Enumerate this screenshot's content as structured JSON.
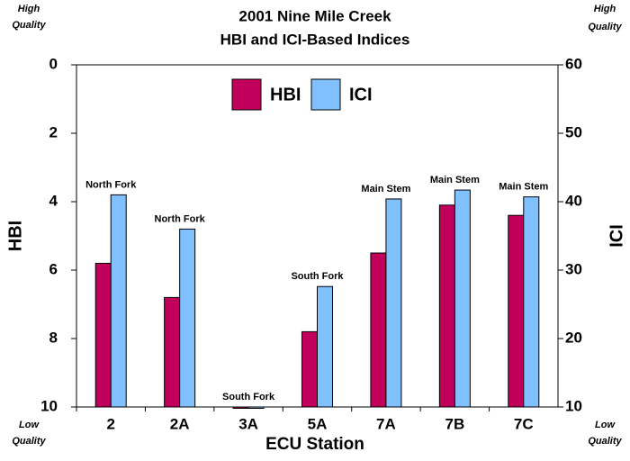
{
  "chart_data": {
    "type": "bar",
    "title": [
      "2001 Nine Mile Creek",
      "HBI and ICI-Based Indices"
    ],
    "xlabel": "ECU Station",
    "ylabel": "HBI",
    "y2label": "ICI",
    "corner_top": [
      "High",
      "Quality"
    ],
    "corner_bottom": [
      "Low",
      "Quality"
    ],
    "categories": [
      "2",
      "2A",
      "3A",
      "5A",
      "7A",
      "7B",
      "7C"
    ],
    "annotations": [
      "North Fork",
      "North Fork",
      "South Fork",
      "South Fork",
      "Main Stem",
      "Main Stem",
      "Main Stem"
    ],
    "series": [
      {
        "name": "HBI",
        "color": "#c0005a",
        "values": [
          5.8,
          6.8,
          10,
          7.8,
          5.5,
          4.1,
          4.4
        ]
      },
      {
        "name": "ICI",
        "color": "#80c0ff",
        "axis": "y2",
        "values": [
          41,
          36,
          10,
          27.6,
          40.4,
          41.7,
          40.7
        ]
      }
    ],
    "ylim": [
      10,
      0
    ],
    "yticks": [
      0,
      2,
      4,
      6,
      8,
      10
    ],
    "y2lim": [
      10,
      60
    ],
    "y2ticks": [
      10,
      20,
      30,
      40,
      50,
      60
    ],
    "legend": "top"
  }
}
